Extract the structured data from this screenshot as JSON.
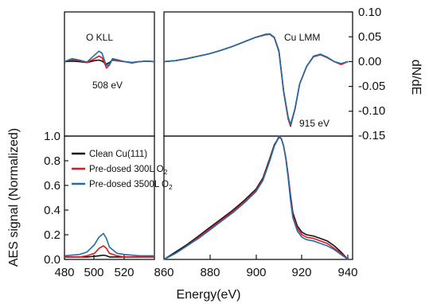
{
  "chart_data": [
    {
      "panel": "top-left",
      "type": "line",
      "annotations": [
        {
          "text": "O KLL"
        },
        {
          "text": "508 eV"
        }
      ],
      "xlim": [
        480,
        540
      ],
      "ylim": [
        -0.15,
        0.1
      ],
      "series": [
        {
          "name": "Clean Cu(111)",
          "x": [
            480,
            485,
            490,
            495,
            500,
            503,
            505,
            507,
            508,
            510,
            512,
            515,
            520,
            525,
            530,
            535,
            540
          ],
          "y": [
            0.0,
            0.001,
            0.0,
            -0.002,
            0.002,
            0.003,
            0.001,
            -0.003,
            -0.005,
            -0.002,
            0.003,
            0.002,
            0.0,
            -0.002,
            0.0,
            0.001,
            0.0
          ]
        },
        {
          "name": "Pre-dosed 300L O2",
          "x": [
            480,
            485,
            490,
            495,
            500,
            503,
            505,
            507,
            508,
            510,
            512,
            515,
            520,
            525,
            530,
            535,
            540
          ],
          "y": [
            0.0,
            0.004,
            0.002,
            -0.002,
            0.006,
            0.011,
            0.008,
            -0.005,
            -0.013,
            -0.007,
            0.005,
            0.002,
            0.0,
            -0.002,
            0.0,
            0.001,
            0.0
          ]
        },
        {
          "name": "Pre-dosed 3500L O2",
          "x": [
            480,
            485,
            490,
            495,
            500,
            503,
            505,
            507,
            508,
            510,
            512,
            515,
            520,
            525,
            530,
            535,
            540
          ],
          "y": [
            0.0,
            0.006,
            0.003,
            -0.001,
            0.013,
            0.021,
            0.017,
            0.0,
            -0.008,
            -0.006,
            0.006,
            0.004,
            0.0,
            -0.003,
            0.0,
            0.001,
            0.0
          ]
        }
      ]
    },
    {
      "panel": "top-right",
      "type": "line",
      "annotations": [
        {
          "text": "Cu LMM"
        },
        {
          "text": "915 eV"
        }
      ],
      "xlim": [
        860,
        942
      ],
      "ylim": [
        -0.15,
        0.1
      ],
      "y2ticks": [
        "0.10",
        "0.05",
        "0.00",
        "-0.05",
        "-0.10",
        "-0.15"
      ],
      "y2label": "dN/dE",
      "series": [
        {
          "name": "Clean Cu(111)",
          "x": [
            860,
            865,
            870,
            875,
            880,
            885,
            890,
            895,
            900,
            904,
            906,
            908,
            910,
            912,
            914,
            915,
            917,
            919,
            922,
            925,
            928,
            931,
            934,
            937,
            940
          ],
          "y": [
            0.0,
            0.002,
            0.006,
            0.011,
            0.016,
            0.023,
            0.031,
            0.04,
            0.049,
            0.054,
            0.055,
            0.048,
            0.02,
            -0.06,
            -0.115,
            -0.13,
            -0.095,
            -0.045,
            -0.01,
            0.01,
            0.014,
            0.008,
            0.0,
            -0.005,
            0.0
          ]
        },
        {
          "name": "Pre-dosed 300L O2",
          "x": [
            860,
            865,
            870,
            875,
            880,
            885,
            890,
            895,
            900,
            904,
            906,
            908,
            910,
            912,
            914,
            915,
            917,
            919,
            922,
            925,
            928,
            931,
            934,
            937,
            940
          ],
          "y": [
            0.0,
            0.002,
            0.006,
            0.011,
            0.016,
            0.023,
            0.031,
            0.04,
            0.049,
            0.054,
            0.055,
            0.048,
            0.02,
            -0.06,
            -0.115,
            -0.129,
            -0.095,
            -0.045,
            -0.01,
            0.01,
            0.014,
            0.008,
            0.0,
            -0.006,
            0.0
          ]
        },
        {
          "name": "Pre-dosed 3500L O2",
          "x": [
            860,
            865,
            870,
            875,
            880,
            885,
            890,
            895,
            900,
            904,
            906,
            908,
            910,
            912,
            914,
            915,
            917,
            919,
            922,
            925,
            928,
            931,
            934,
            937,
            940
          ],
          "y": [
            0.0,
            0.002,
            0.006,
            0.011,
            0.016,
            0.023,
            0.031,
            0.04,
            0.049,
            0.055,
            0.056,
            0.049,
            0.022,
            -0.058,
            -0.112,
            -0.127,
            -0.094,
            -0.045,
            -0.01,
            0.011,
            0.015,
            0.009,
            0.0,
            -0.004,
            0.0
          ]
        }
      ]
    },
    {
      "panel": "bottom-left",
      "type": "line",
      "xticks": [
        480,
        500,
        520
      ],
      "xlim": [
        480,
        540
      ],
      "ylim": [
        0.0,
        1.0
      ],
      "yticks": [
        "0.0",
        "0.2",
        "0.4",
        "0.6",
        "0.8",
        "1.0"
      ],
      "ylabel": "AES signal (Normalized)",
      "series": [
        {
          "name": "Clean Cu(111)",
          "x": [
            480,
            490,
            495,
            500,
            503,
            506,
            508,
            510,
            515,
            520,
            530,
            540
          ],
          "y": [
            0.02,
            0.02,
            0.02,
            0.025,
            0.03,
            0.035,
            0.03,
            0.02,
            0.02,
            0.02,
            0.02,
            0.02
          ]
        },
        {
          "name": "Pre-dosed 300L O2",
          "x": [
            480,
            490,
            495,
            500,
            503,
            506,
            508,
            510,
            515,
            520,
            530,
            540
          ],
          "y": [
            0.02,
            0.02,
            0.03,
            0.05,
            0.09,
            0.11,
            0.09,
            0.05,
            0.03,
            0.02,
            0.02,
            0.02
          ]
        },
        {
          "name": "Pre-dosed 3500L O2",
          "x": [
            480,
            490,
            495,
            500,
            503,
            506,
            508,
            510,
            515,
            520,
            530,
            540
          ],
          "y": [
            0.03,
            0.04,
            0.06,
            0.12,
            0.18,
            0.21,
            0.17,
            0.1,
            0.05,
            0.04,
            0.03,
            0.03
          ]
        }
      ]
    },
    {
      "panel": "bottom-right",
      "type": "line",
      "xticks": [
        860,
        880,
        900,
        920,
        940
      ],
      "xlim": [
        860,
        942
      ],
      "ylim": [
        0.0,
        1.0
      ],
      "xlabel": "Energy(eV)",
      "legend": {
        "position": "top-left",
        "entries": [
          {
            "prefix": "Clean Cu(111)",
            "sub": "",
            "color": "#111111"
          },
          {
            "prefix": "Pre-dosed 300L O",
            "sub": "2",
            "color": "#e8141b"
          },
          {
            "prefix": "Pre-dosed 3500L O",
            "sub": "2",
            "color": "#1d6fa5"
          }
        ]
      },
      "series": [
        {
          "name": "Clean Cu(111)",
          "x": [
            860,
            865,
            870,
            875,
            880,
            885,
            890,
            895,
            900,
            903,
            906,
            908,
            910,
            911,
            912,
            913,
            914,
            915,
            916,
            918,
            920,
            922,
            925,
            928,
            931,
            934,
            937,
            940
          ],
          "y": [
            0.0,
            0.06,
            0.12,
            0.19,
            0.26,
            0.33,
            0.4,
            0.48,
            0.57,
            0.66,
            0.82,
            0.93,
            0.99,
            0.98,
            0.92,
            0.82,
            0.68,
            0.52,
            0.38,
            0.27,
            0.22,
            0.2,
            0.19,
            0.17,
            0.15,
            0.11,
            0.06,
            0.0
          ]
        },
        {
          "name": "Pre-dosed 300L O2",
          "x": [
            860,
            865,
            870,
            875,
            880,
            885,
            890,
            895,
            900,
            903,
            906,
            908,
            910,
            911,
            912,
            913,
            914,
            915,
            916,
            918,
            920,
            922,
            925,
            928,
            931,
            934,
            937,
            940
          ],
          "y": [
            0.0,
            0.05,
            0.11,
            0.18,
            0.25,
            0.32,
            0.39,
            0.47,
            0.56,
            0.65,
            0.81,
            0.92,
            0.99,
            0.98,
            0.92,
            0.82,
            0.68,
            0.5,
            0.36,
            0.25,
            0.2,
            0.18,
            0.17,
            0.15,
            0.13,
            0.09,
            0.05,
            0.0
          ]
        },
        {
          "name": "Pre-dosed 3500L O2",
          "x": [
            860,
            865,
            870,
            875,
            880,
            885,
            890,
            895,
            900,
            903,
            906,
            908,
            910,
            911,
            912,
            913,
            914,
            915,
            916,
            918,
            920,
            922,
            925,
            928,
            931,
            934,
            937,
            940
          ],
          "y": [
            0.0,
            0.05,
            0.11,
            0.17,
            0.24,
            0.31,
            0.38,
            0.46,
            0.55,
            0.64,
            0.8,
            0.92,
            1.0,
            0.98,
            0.92,
            0.81,
            0.66,
            0.48,
            0.34,
            0.23,
            0.18,
            0.16,
            0.15,
            0.13,
            0.11,
            0.08,
            0.04,
            0.0
          ]
        }
      ]
    }
  ]
}
